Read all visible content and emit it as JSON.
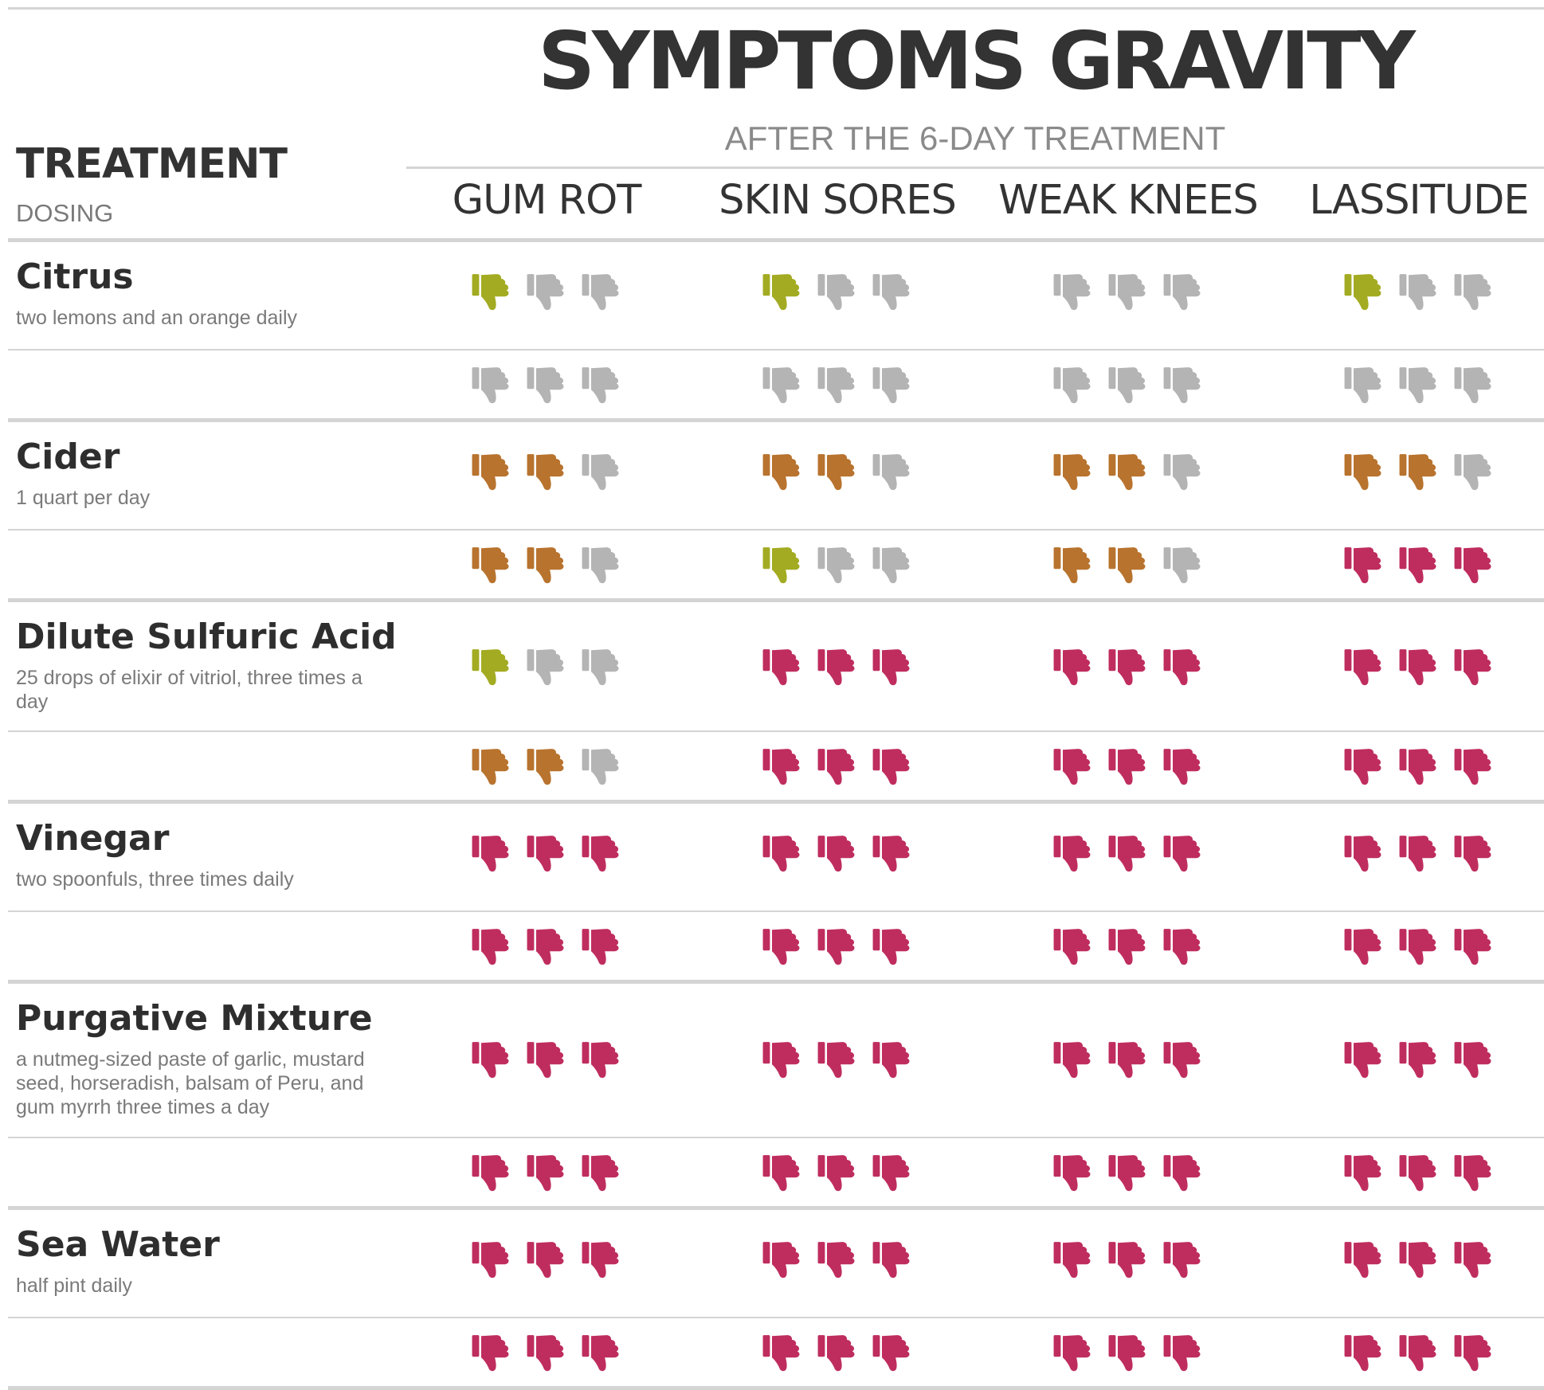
{
  "header": {
    "title": "SYMPTOMS GRAVITY",
    "subtitle": "AFTER THE 6-DAY TREATMENT",
    "treatment_label": "TREATMENT",
    "dosing_label": "DOSING"
  },
  "colors": {
    "green": "#a3ab22",
    "orange": "#b8732e",
    "red": "#bf2d5e",
    "grey": "#b4b4b4",
    "rule": "#d4d4d4"
  },
  "icon": "thumbs-down-icon",
  "chart_data": {
    "type": "table",
    "title": "SYMPTOMS GRAVITY",
    "subtitle": "AFTER THE 6-DAY TREATMENT",
    "columns": [
      "GUM ROT",
      "SKIN SORES",
      "WEAK KNEES",
      "LASSITUDE"
    ],
    "scale_max": 3,
    "rows": [
      {
        "treatment": "Citrus",
        "dosing": "two lemons and an orange daily",
        "values": [
          [
            1,
            0
          ],
          [
            1,
            0
          ],
          [
            0,
            0
          ],
          [
            1,
            0
          ]
        ]
      },
      {
        "treatment": "Cider",
        "dosing": "1 quart per day",
        "values": [
          [
            2,
            2
          ],
          [
            2,
            1
          ],
          [
            2,
            2
          ],
          [
            2,
            3
          ]
        ]
      },
      {
        "treatment": "Dilute Sulfuric Acid",
        "dosing": "25 drops of elixir of vitriol, three times a day",
        "values": [
          [
            1,
            2
          ],
          [
            3,
            3
          ],
          [
            3,
            3
          ],
          [
            3,
            3
          ]
        ]
      },
      {
        "treatment": "Vinegar",
        "dosing": "two spoonfuls, three times daily",
        "values": [
          [
            3,
            3
          ],
          [
            3,
            3
          ],
          [
            3,
            3
          ],
          [
            3,
            3
          ]
        ]
      },
      {
        "treatment": "Purgative Mixture",
        "dosing": "a nutmeg-sized paste of garlic, mustard seed, horseradish, balsam of Peru, and gum myrrh three times a day",
        "values": [
          [
            3,
            3
          ],
          [
            3,
            3
          ],
          [
            3,
            3
          ],
          [
            3,
            3
          ]
        ]
      },
      {
        "treatment": "Sea Water",
        "dosing": "half pint daily",
        "values": [
          [
            3,
            3
          ],
          [
            3,
            3
          ],
          [
            3,
            3
          ],
          [
            3,
            3
          ]
        ]
      }
    ]
  }
}
